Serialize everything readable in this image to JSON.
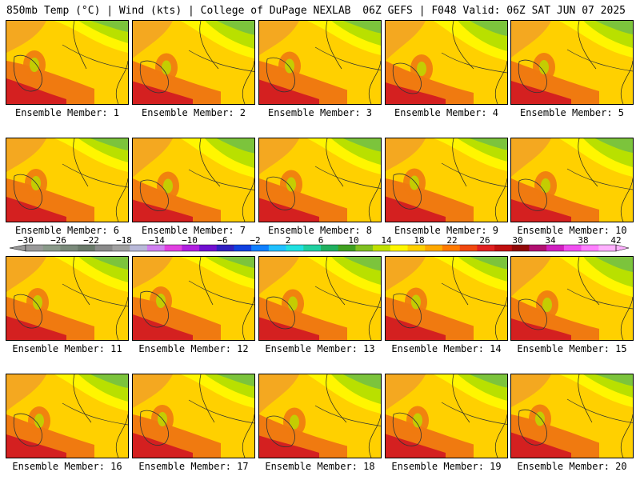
{
  "header": {
    "left": "850mb Temp (°C) | Wind (kts) | College of DuPage NEXLAB",
    "right": "06Z GEFS | F048 Valid: 06Z SAT JUN 07 2025"
  },
  "colors": {
    "hot": "#d42020",
    "warm": "#f07a10",
    "mid": "#ffd000",
    "yellow": "#fff600",
    "cool": "#b9e000",
    "cooler": "#7cc43c"
  },
  "members": [
    {
      "label": "Ensemble Member: 1"
    },
    {
      "label": "Ensemble Member: 2"
    },
    {
      "label": "Ensemble Member: 3"
    },
    {
      "label": "Ensemble Member: 4"
    },
    {
      "label": "Ensemble Member: 5"
    },
    {
      "label": "Ensemble Member: 6"
    },
    {
      "label": "Ensemble Member: 7"
    },
    {
      "label": "Ensemble Member: 8"
    },
    {
      "label": "Ensemble Member: 9"
    },
    {
      "label": "Ensemble Member: 10"
    },
    {
      "label": "Ensemble Member: 11"
    },
    {
      "label": "Ensemble Member: 12"
    },
    {
      "label": "Ensemble Member: 13"
    },
    {
      "label": "Ensemble Member: 14"
    },
    {
      "label": "Ensemble Member: 15"
    },
    {
      "label": "Ensemble Member: 16"
    },
    {
      "label": "Ensemble Member: 17"
    },
    {
      "label": "Ensemble Member: 18"
    },
    {
      "label": "Ensemble Member: 19"
    },
    {
      "label": "Ensemble Member: 20"
    }
  ],
  "colorbar": {
    "labels": [
      "−30",
      "−26",
      "−22",
      "−18",
      "−14",
      "−10",
      "−6",
      "−2",
      "2",
      "6",
      "10",
      "14",
      "18",
      "22",
      "26",
      "30",
      "34",
      "38",
      "42"
    ],
    "colors": [
      "#9a9a9a",
      "#8a9a8a",
      "#7a8a7a",
      "#6a7a6a",
      "#8a8a8a",
      "#a0a0a0",
      "#b8b8d8",
      "#d080f0",
      "#e040e0",
      "#b020e0",
      "#7010d0",
      "#3020c0",
      "#1040e0",
      "#1080ff",
      "#20c0ff",
      "#20e0e0",
      "#20d0a0",
      "#20b060",
      "#40a020",
      "#80c020",
      "#c0e000",
      "#fff600",
      "#ffd000",
      "#ffa800",
      "#ff7a00",
      "#f04810",
      "#e02020",
      "#c01010",
      "#900808",
      "#b01070",
      "#d020c0",
      "#f050f0",
      "#ff80ff",
      "#ffb0ff"
    ]
  }
}
